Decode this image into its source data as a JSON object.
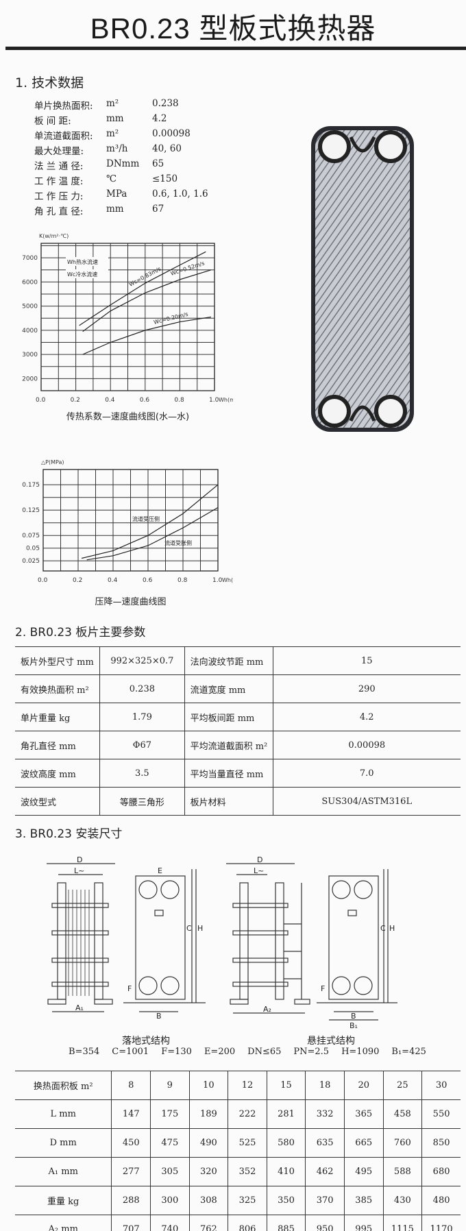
{
  "title": "BR0.23 型板式换热器",
  "section1": {
    "heading": "1. 技术数据",
    "specs": [
      {
        "label": "单片换热面积:",
        "unit": "m²",
        "value": "0.238"
      },
      {
        "label": "板 间 距:",
        "unit": "mm",
        "value": "4.2"
      },
      {
        "label": "单流道截面积:",
        "unit": "m²",
        "value": "0.00098"
      },
      {
        "label": "最大处理量:",
        "unit": "m³/h",
        "value": "40, 60"
      },
      {
        "label": "法 兰 通 径:",
        "unit": "DNmm",
        "value": "65"
      },
      {
        "label": "工 作 温 度:",
        "unit": "℃",
        "value": "≤150"
      },
      {
        "label": "工 作 压 力:",
        "unit": "MPa",
        "value": "0.6, 1.0, 1.6"
      },
      {
        "label": "角 孔 直 径:",
        "unit": "mm",
        "value": "67"
      }
    ]
  },
  "chart_data": [
    {
      "type": "line",
      "title": "传热系数—速度曲线图(水—水)",
      "ylabel": "K(w/m²·℃)",
      "xlabel": "Wh(m/s)",
      "xlim": [
        0,
        1
      ],
      "ylim": [
        1500,
        7600
      ],
      "xticks": [
        "0.0",
        "0.2",
        "0.4",
        "0.6",
        "0.8",
        "1.0"
      ],
      "yticks": [
        "2000",
        "3000",
        "4000",
        "5000",
        "6000",
        "7000"
      ],
      "grid": true,
      "legend": [
        "Wh热水流速",
        "Wc冷水流速"
      ],
      "series": [
        {
          "name": "Wc=0.83m/s",
          "x": [
            0.22,
            0.4,
            0.6,
            0.8,
            0.95
          ],
          "y": [
            4200,
            5050,
            5950,
            6700,
            7250
          ]
        },
        {
          "name": "Wc=0.52m/s",
          "x": [
            0.24,
            0.4,
            0.6,
            0.8,
            0.98
          ],
          "y": [
            3950,
            4800,
            5550,
            6100,
            6500
          ]
        },
        {
          "name": "Wc=0.20m/s",
          "x": [
            0.24,
            0.4,
            0.6,
            0.8,
            0.98
          ],
          "y": [
            3000,
            3500,
            4000,
            4350,
            4550
          ]
        }
      ]
    },
    {
      "type": "line",
      "title": "压降—速度曲线图",
      "ylabel": "△P(MPa)",
      "xlabel": "Wh(m/s)",
      "xlim": [
        0,
        1
      ],
      "ylim": [
        0.005,
        0.205
      ],
      "xticks": [
        "0.0",
        "0.2",
        "0.4",
        "0.6",
        "0.8",
        "1.0"
      ],
      "yticks": [
        "0.025",
        "0.05",
        "0.075",
        "0.125",
        "0.175"
      ],
      "grid": true,
      "series": [
        {
          "name": "流道受压侧",
          "x": [
            0.22,
            0.4,
            0.6,
            0.8,
            1.0
          ],
          "y": [
            0.03,
            0.045,
            0.075,
            0.118,
            0.175
          ]
        },
        {
          "name": "流道受胀侧",
          "x": [
            0.25,
            0.4,
            0.6,
            0.8,
            1.0
          ],
          "y": [
            0.027,
            0.035,
            0.055,
            0.09,
            0.13
          ]
        }
      ]
    }
  ],
  "section2": {
    "heading": "2. BR0.23 板片主要参数",
    "rows": [
      [
        "板片外型尺寸 mm",
        "992×325×0.7",
        "法向波纹节距 mm",
        "15"
      ],
      [
        "有效换热面积 m²",
        "0.238",
        "流道宽度 mm",
        "290"
      ],
      [
        "单片重量 kg",
        "1.79",
        "平均板间距 mm",
        "4.2"
      ],
      [
        "角孔直径 mm",
        "Φ67",
        "平均流道截面积 m²",
        "0.00098"
      ],
      [
        "波纹高度 mm",
        "3.5",
        "平均当量直径 mm",
        "7.0"
      ],
      [
        "波纹型式",
        "等腰三角形",
        "板片材料",
        "SUS304/ASTM316L"
      ]
    ]
  },
  "section3": {
    "heading": "3. BR0.23 安装尺寸",
    "drawing_labels": {
      "D": "D",
      "L": "L~",
      "E": "E",
      "C": "C",
      "H": "H",
      "F": "F",
      "A1": "A₁",
      "A2": "A₂",
      "B": "B",
      "B1": "B₁"
    },
    "floor_caption": "落地式结构",
    "hang_caption": "悬挂式结构",
    "params": [
      "B=354",
      "C=1001",
      "F=130",
      "E=200",
      "DN≤65",
      "PN=2.5",
      "H=1090",
      "B₁=425"
    ],
    "table": {
      "header": [
        "换热面积板 m²",
        "8",
        "9",
        "10",
        "12",
        "15",
        "18",
        "20",
        "25",
        "30"
      ],
      "rows": [
        [
          "L mm",
          "147",
          "175",
          "189",
          "222",
          "281",
          "332",
          "365",
          "458",
          "550"
        ],
        [
          "D mm",
          "450",
          "475",
          "490",
          "525",
          "580",
          "635",
          "665",
          "760",
          "850"
        ],
        [
          "A₁ mm",
          "277",
          "305",
          "320",
          "352",
          "410",
          "462",
          "495",
          "588",
          "680"
        ],
        [
          "重量 kg",
          "288",
          "300",
          "308",
          "325",
          "350",
          "370",
          "385",
          "430",
          "480"
        ],
        [
          "A₂ mm",
          "707",
          "740",
          "762",
          "806",
          "885",
          "950",
          "995",
          "1115",
          "1170"
        ]
      ]
    }
  }
}
